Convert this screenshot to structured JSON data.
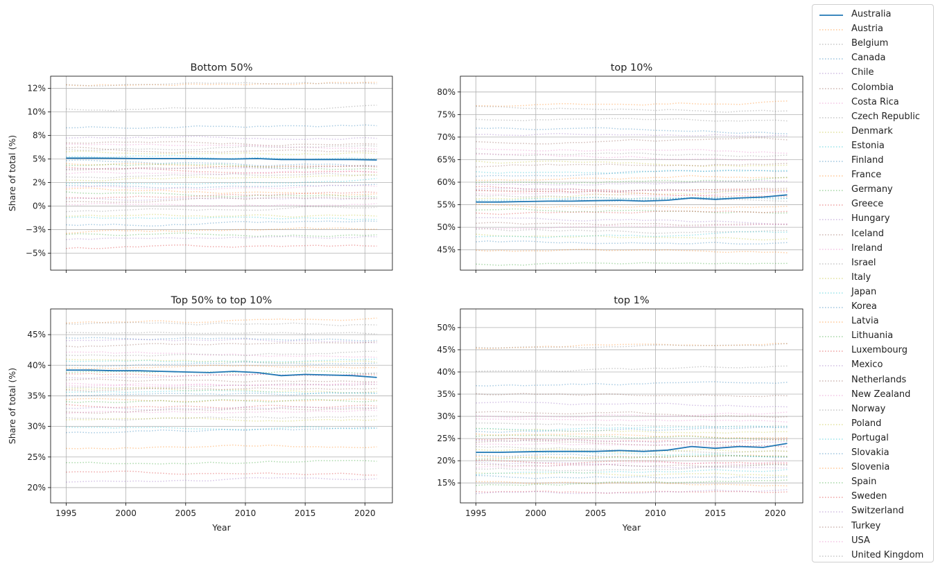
{
  "chart_data": [
    {
      "type": "line",
      "title": "Bottom 50%",
      "xlabel": "",
      "ylabel": "Share of total (%)",
      "xlim": [
        1993.7,
        2022.3
      ],
      "ylim": [
        -6.8,
        13.8
      ],
      "yticks": [
        -5,
        -2.5,
        0,
        2.5,
        5,
        7.5,
        10,
        12.5
      ],
      "yticklabels": [
        "−5%",
        "−3%",
        "0%",
        "2%",
        "5%",
        "8%",
        "10%",
        "12%"
      ],
      "xticks": [
        1995,
        2000,
        2005,
        2010,
        2015,
        2020
      ],
      "xticklabels": [
        "",
        "",
        "",
        "",
        "",
        ""
      ],
      "grid": true,
      "highlight": {
        "name": "Australia",
        "color": "#1f77b4",
        "x": [
          1995,
          1997,
          1999,
          2001,
          2003,
          2005,
          2007,
          2009,
          2011,
          2013,
          2015,
          2017,
          2019,
          2021
        ],
        "values": [
          5.1,
          5.1,
          5.08,
          5.05,
          5.05,
          5.05,
          5.02,
          5.0,
          5.05,
          4.95,
          4.95,
          4.95,
          4.95,
          4.9
        ]
      },
      "country_levels": [
        12.8,
        10.3,
        8.3,
        7.2,
        6.8,
        6.5,
        6.0,
        5.8,
        5.3,
        4.8,
        4.6,
        4.4,
        4.2,
        4.0,
        3.8,
        3.5,
        3.2,
        2.8,
        2.5,
        2.2,
        1.8,
        1.5,
        1.0,
        0.8,
        0.5,
        0.2,
        -0.5,
        -1.0,
        -1.2,
        -2.0,
        -2.9,
        -3.0,
        -4.5,
        -3.5,
        6.2,
        2.0
      ]
    },
    {
      "type": "line",
      "title": "top 10%",
      "xlabel": "",
      "ylabel": "",
      "xlim": [
        1993.7,
        2022.3
      ],
      "ylim": [
        40.5,
        83.5
      ],
      "yticks": [
        45,
        50,
        55,
        60,
        65,
        70,
        75,
        80
      ],
      "yticklabels": [
        "45%",
        "50%",
        "55%",
        "60%",
        "65%",
        "70%",
        "75%",
        "80%"
      ],
      "xticks": [
        1995,
        2000,
        2005,
        2010,
        2015,
        2020
      ],
      "xticklabels": [
        "",
        "",
        "",
        "",
        "",
        ""
      ],
      "grid": true,
      "highlight": {
        "name": "Australia",
        "color": "#1f77b4",
        "x": [
          1995,
          1997,
          1999,
          2001,
          2003,
          2005,
          2007,
          2009,
          2011,
          2013,
          2015,
          2017,
          2019,
          2021
        ],
        "values": [
          55.6,
          55.6,
          55.7,
          55.8,
          55.8,
          55.9,
          56.0,
          55.8,
          56.0,
          56.5,
          56.2,
          56.5,
          56.7,
          57.2
        ]
      },
      "country_levels": [
        77.0,
        74.0,
        72.0,
        70.5,
        69.0,
        67.5,
        66.5,
        64.5,
        62.5,
        61.5,
        60.5,
        60.0,
        59.0,
        58.5,
        58.0,
        57.5,
        57.0,
        56.5,
        56.0,
        55.5,
        55.0,
        54.0,
        53.0,
        52.0,
        51.0,
        50.0,
        49.5,
        48.5,
        48.0,
        47.0,
        45.0,
        42.0,
        58.2,
        59.5,
        63.5,
        66.0
      ]
    },
    {
      "type": "line",
      "title": "Top 50% to top 10%",
      "xlabel": "Year",
      "ylabel": "Share of total (%)",
      "xlim": [
        1993.7,
        2022.3
      ],
      "ylim": [
        17.5,
        49.2
      ],
      "yticks": [
        20,
        25,
        30,
        35,
        40,
        45
      ],
      "yticklabels": [
        "20%",
        "25%",
        "30%",
        "35%",
        "40%",
        "45%"
      ],
      "xticks": [
        1995,
        2000,
        2005,
        2010,
        2015,
        2020
      ],
      "xticklabels": [
        "1995",
        "2000",
        "2005",
        "2010",
        "2015",
        "2020"
      ],
      "grid": true,
      "highlight": {
        "name": "Australia",
        "color": "#1f77b4",
        "x": [
          1995,
          1997,
          1999,
          2001,
          2003,
          2005,
          2007,
          2009,
          2011,
          2013,
          2015,
          2017,
          2019,
          2021
        ],
        "values": [
          39.2,
          39.2,
          39.1,
          39.1,
          39.0,
          38.9,
          38.8,
          39.0,
          38.8,
          38.3,
          38.5,
          38.4,
          38.3,
          38.0
        ]
      },
      "country_levels": [
        46.8,
        45.5,
        44.5,
        44.0,
        43.0,
        42.0,
        41.5,
        41.0,
        40.5,
        40.0,
        39.5,
        38.8,
        38.5,
        38.0,
        37.5,
        37.0,
        36.5,
        36.0,
        35.5,
        35.0,
        34.5,
        34.0,
        33.5,
        33.0,
        32.5,
        32.0,
        31.5,
        31.0,
        30.0,
        29.0,
        26.5,
        24.0,
        22.5,
        21.0,
        35.8,
        36.8
      ]
    },
    {
      "type": "line",
      "title": "top 1%",
      "xlabel": "Year",
      "ylabel": "",
      "xlim": [
        1993.7,
        2022.3
      ],
      "ylim": [
        10.5,
        54.2
      ],
      "yticks": [
        15,
        20,
        25,
        30,
        35,
        40,
        45,
        50
      ],
      "yticklabels": [
        "15%",
        "20%",
        "25%",
        "30%",
        "35%",
        "40%",
        "45%",
        "50%"
      ],
      "xticks": [
        1995,
        2000,
        2005,
        2010,
        2015,
        2020
      ],
      "xticklabels": [
        "1995",
        "2000",
        "2005",
        "2010",
        "2015",
        "2020"
      ],
      "grid": true,
      "highlight": {
        "name": "Australia",
        "color": "#1f77b4",
        "x": [
          1995,
          1997,
          1999,
          2001,
          2003,
          2005,
          2007,
          2009,
          2011,
          2013,
          2015,
          2017,
          2019,
          2021
        ],
        "values": [
          21.9,
          21.9,
          22.0,
          22.1,
          22.1,
          22.1,
          22.3,
          22.1,
          22.4,
          23.2,
          22.8,
          23.2,
          23.0,
          23.9
        ]
      },
      "country_levels": [
        45.5,
        40.0,
        37.0,
        33.0,
        31.0,
        29.5,
        28.5,
        27.5,
        27.0,
        26.5,
        26.0,
        25.5,
        25.0,
        24.5,
        24.0,
        23.5,
        23.0,
        22.5,
        22.0,
        21.5,
        21.0,
        20.5,
        20.0,
        19.5,
        19.0,
        18.5,
        18.0,
        17.5,
        17.0,
        16.5,
        15.5,
        14.5,
        13.0,
        12.5,
        35.0,
        30.0
      ]
    }
  ],
  "legend": {
    "placement": "right",
    "entries": [
      {
        "name": "Australia",
        "color": "#1f77b4",
        "style": "solid"
      },
      {
        "name": "Austria",
        "color": "#ff7f0e",
        "style": "dotted"
      },
      {
        "name": "Belgium",
        "color": "#7f7f7f",
        "style": "dotted"
      },
      {
        "name": "Canada",
        "color": "#1f77b4",
        "style": "dotted"
      },
      {
        "name": "Chile",
        "color": "#9467bd",
        "style": "dotted"
      },
      {
        "name": "Colombia",
        "color": "#8c564b",
        "style": "dotted"
      },
      {
        "name": "Costa Rica",
        "color": "#e377c2",
        "style": "dotted"
      },
      {
        "name": "Czech Republic",
        "color": "#7f7f7f",
        "style": "dotted"
      },
      {
        "name": "Denmark",
        "color": "#bcbd22",
        "style": "dotted"
      },
      {
        "name": "Estonia",
        "color": "#17becf",
        "style": "dotted"
      },
      {
        "name": "Finland",
        "color": "#1f77b4",
        "style": "dotted"
      },
      {
        "name": "France",
        "color": "#ff7f0e",
        "style": "dotted"
      },
      {
        "name": "Germany",
        "color": "#2ca02c",
        "style": "dotted"
      },
      {
        "name": "Greece",
        "color": "#d62728",
        "style": "dotted"
      },
      {
        "name": "Hungary",
        "color": "#9467bd",
        "style": "dotted"
      },
      {
        "name": "Iceland",
        "color": "#8c564b",
        "style": "dotted"
      },
      {
        "name": "Ireland",
        "color": "#e377c2",
        "style": "dotted"
      },
      {
        "name": "Israel",
        "color": "#7f7f7f",
        "style": "dotted"
      },
      {
        "name": "Italy",
        "color": "#bcbd22",
        "style": "dotted"
      },
      {
        "name": "Japan",
        "color": "#17becf",
        "style": "dotted"
      },
      {
        "name": "Korea",
        "color": "#1f77b4",
        "style": "dotted"
      },
      {
        "name": "Latvia",
        "color": "#ff7f0e",
        "style": "dotted"
      },
      {
        "name": "Lithuania",
        "color": "#2ca02c",
        "style": "dotted"
      },
      {
        "name": "Luxembourg",
        "color": "#d62728",
        "style": "dotted"
      },
      {
        "name": "Mexico",
        "color": "#9467bd",
        "style": "dotted"
      },
      {
        "name": "Netherlands",
        "color": "#8c564b",
        "style": "dotted"
      },
      {
        "name": "New Zealand",
        "color": "#e377c2",
        "style": "dotted"
      },
      {
        "name": "Norway",
        "color": "#7f7f7f",
        "style": "dotted"
      },
      {
        "name": "Poland",
        "color": "#bcbd22",
        "style": "dotted"
      },
      {
        "name": "Portugal",
        "color": "#17becf",
        "style": "dotted"
      },
      {
        "name": "Slovakia",
        "color": "#1f77b4",
        "style": "dotted"
      },
      {
        "name": "Slovenia",
        "color": "#ff7f0e",
        "style": "dotted"
      },
      {
        "name": "Spain",
        "color": "#2ca02c",
        "style": "dotted"
      },
      {
        "name": "Sweden",
        "color": "#d62728",
        "style": "dotted"
      },
      {
        "name": "Switzerland",
        "color": "#9467bd",
        "style": "dotted"
      },
      {
        "name": "Turkey",
        "color": "#8c564b",
        "style": "dotted"
      },
      {
        "name": "USA",
        "color": "#e377c2",
        "style": "dotted"
      },
      {
        "name": "United Kingdom",
        "color": "#7f7f7f",
        "style": "dotted"
      }
    ]
  }
}
